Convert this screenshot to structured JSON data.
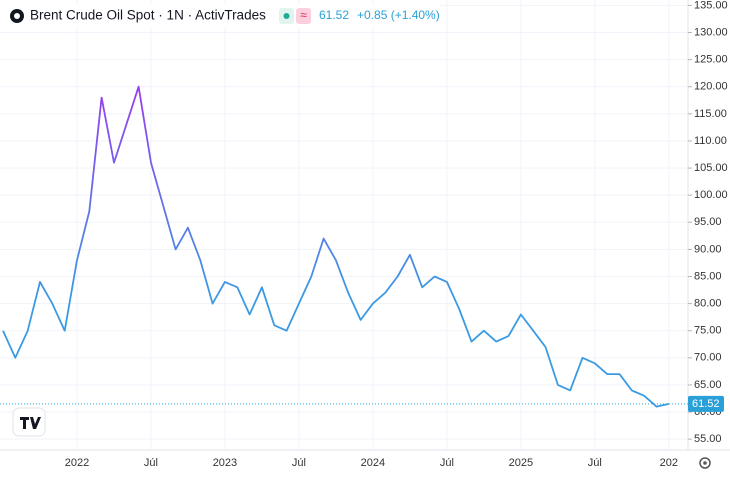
{
  "chart_data": {
    "type": "line",
    "title": "Brent Crude Oil Spot · 1N · ActivTrades",
    "badge": "≈",
    "last_price": "61.52",
    "change": "+0.85 (+1.40%)",
    "x": [
      "2021-07",
      "2021-08",
      "2021-09",
      "2021-10",
      "2021-11",
      "2021-12",
      "2022-01",
      "2022-02",
      "2022-03",
      "2022-04",
      "2022-05",
      "2022-06",
      "2022-07",
      "2022-08",
      "2022-09",
      "2022-10",
      "2022-11",
      "2022-12",
      "2023-01",
      "2023-02",
      "2023-03",
      "2023-04",
      "2023-05",
      "2023-06",
      "2023-07",
      "2023-08",
      "2023-09",
      "2023-10",
      "2023-11",
      "2023-12",
      "2024-01",
      "2024-02",
      "2024-03",
      "2024-04",
      "2024-05",
      "2024-06",
      "2024-07",
      "2024-08",
      "2024-09",
      "2024-10",
      "2024-11",
      "2024-12",
      "2025-01",
      "2025-02",
      "2025-03",
      "2025-04",
      "2025-05",
      "2025-06",
      "2025-07",
      "2025-08",
      "2025-09",
      "2025-10",
      "2025-11",
      "2025-12",
      "2026-01"
    ],
    "series": [
      {
        "colors": [
          "#a332f3",
          "#3a9be2"
        ],
        "values": [
          75,
          70,
          75,
          84,
          80,
          75,
          88,
          97,
          118,
          106,
          113,
          120,
          106,
          98,
          90,
          94,
          88,
          80,
          84,
          83,
          78,
          83,
          76,
          75,
          80,
          85,
          92,
          88,
          82,
          77,
          80,
          82,
          85,
          89,
          83,
          85,
          84,
          79,
          73,
          75,
          73,
          74,
          78,
          75,
          72,
          65,
          64,
          70,
          69,
          67,
          67,
          64,
          63,
          61,
          61.5
        ]
      }
    ],
    "ylim": [
      53,
      136
    ],
    "yticks": [
      {
        "value": 55,
        "label": "55.00"
      },
      {
        "value": 60,
        "label": "60.00"
      },
      {
        "value": 65,
        "label": "65.00"
      },
      {
        "value": 70,
        "label": "70.00"
      },
      {
        "value": 75,
        "label": "75.00"
      },
      {
        "value": 80,
        "label": "80.00"
      },
      {
        "value": 85,
        "label": "85.00"
      },
      {
        "value": 90,
        "label": "90.00"
      },
      {
        "value": 95,
        "label": "95.00"
      },
      {
        "value": 100,
        "label": "100.00"
      },
      {
        "value": 105,
        "label": "105.00"
      },
      {
        "value": 110,
        "label": "110.00"
      },
      {
        "value": 115,
        "label": "115.00"
      },
      {
        "value": 120,
        "label": "120.00"
      },
      {
        "value": 125,
        "label": "125.00"
      },
      {
        "value": 130,
        "label": "130.00"
      },
      {
        "value": 135,
        "label": "135.00"
      }
    ],
    "xticks": [
      {
        "value": "2022-01",
        "label": "2022"
      },
      {
        "value": "2022-07",
        "label": "Júl"
      },
      {
        "value": "2023-01",
        "label": "2023"
      },
      {
        "value": "2023-07",
        "label": "Júl"
      },
      {
        "value": "2024-01",
        "label": "2024"
      },
      {
        "value": "2024-07",
        "label": "Júl"
      },
      {
        "value": "2025-01",
        "label": "2025"
      },
      {
        "value": "2025-07",
        "label": "Júl"
      },
      {
        "value": "2026-01",
        "label": "202"
      }
    ],
    "grid": true,
    "accent_color": "#2aa0d8"
  }
}
